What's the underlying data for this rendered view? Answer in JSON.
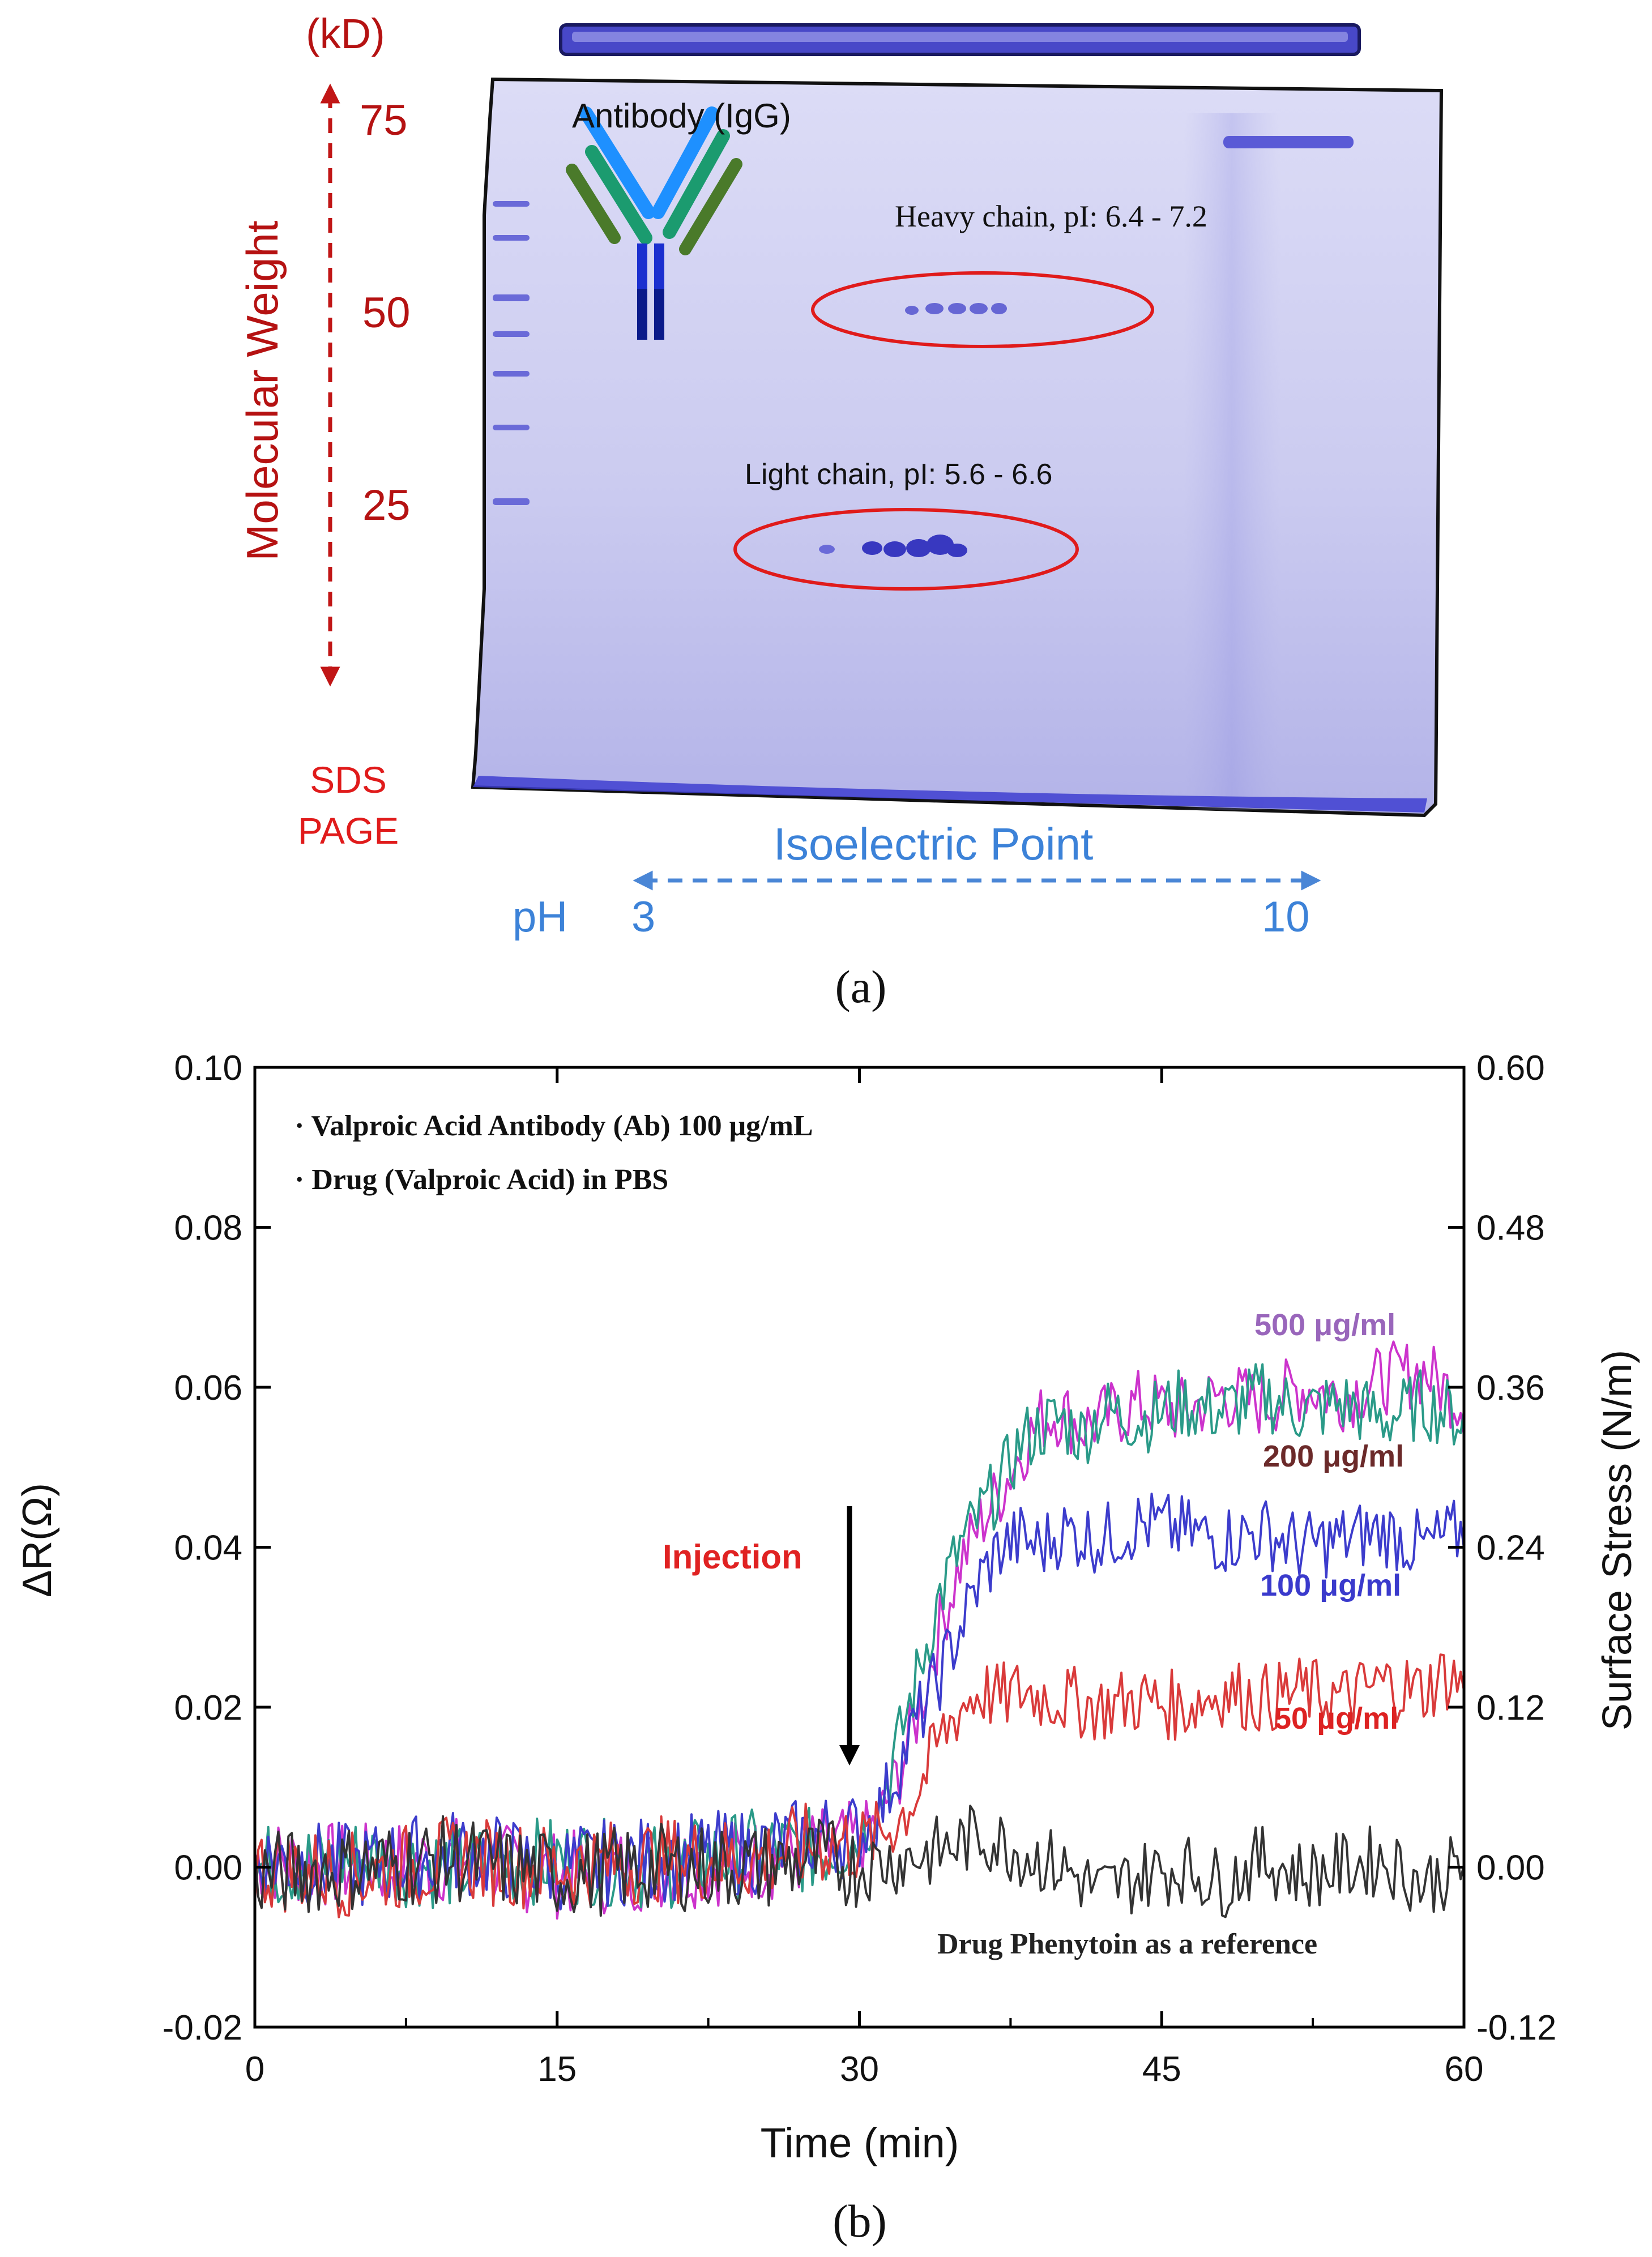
{
  "panel_a": {
    "kd_label": "(kD)",
    "mw_ticks": [
      "75",
      "50",
      "25"
    ],
    "mw_axis_label": "Molecular Weight",
    "sds_line1": "SDS",
    "sds_line2": "PAGE",
    "antibody_label": "Antibody (IgG)",
    "heavy_chain_label": "Heavy chain, pI: 6.4 - 7.2",
    "light_chain_label": "Light chain, pI:  5.6 - 6.6",
    "iep_label": "Isoelectric Point",
    "ph_label": "pH",
    "ph_min": "3",
    "ph_max": "10",
    "caption": "(a)"
  },
  "panel_b": {
    "caption": "(b)",
    "legend_line1": "· Valproic Acid Antibody (Ab) 100 μg/mL",
    "legend_line2": "· Drug (Valproic Acid) in PBS",
    "injection_label": "Injection",
    "reference_label": "Drug Phenytoin as a reference"
  },
  "chart_data": {
    "type": "line",
    "title": "",
    "xlabel": "Time (min)",
    "ylabel": "ΔR(Ω)",
    "ylabel_right": "Surface Stress (N/m)",
    "xlim": [
      0,
      60
    ],
    "ylim": [
      -0.02,
      0.1
    ],
    "ylim_right": [
      -0.12,
      0.6
    ],
    "x_ticks": [
      "0",
      "15",
      "30",
      "45",
      "60"
    ],
    "y_ticks": [
      "-0.02",
      "0.00",
      "0.02",
      "0.04",
      "0.06",
      "0.08",
      "0.10"
    ],
    "y_right_ticks": [
      "-0.12",
      "0.00",
      "0.12",
      "0.24",
      "0.36",
      "0.48",
      "0.60"
    ],
    "injection_time": 30,
    "series": [
      {
        "name": "500 μg/ml",
        "color": "#cc33cc",
        "label_color": "#9966bb",
        "x": [
          0,
          5,
          10,
          15,
          20,
          25,
          28,
          30,
          31,
          32,
          33,
          34,
          35,
          36,
          37,
          38,
          39,
          40,
          41,
          42,
          44,
          46,
          48,
          50,
          52,
          54,
          56,
          58,
          59,
          60
        ],
        "y": [
          0.001,
          0.0,
          0.001,
          -0.001,
          0.0,
          0.001,
          0.002,
          0.003,
          0.006,
          0.012,
          0.02,
          0.03,
          0.038,
          0.043,
          0.047,
          0.052,
          0.056,
          0.057,
          0.055,
          0.056,
          0.058,
          0.057,
          0.059,
          0.058,
          0.06,
          0.059,
          0.061,
          0.062,
          0.06,
          0.058
        ]
      },
      {
        "name": "200 μg/ml",
        "color": "#2a9a88",
        "label_color": "#6b2a2a",
        "x": [
          0,
          5,
          10,
          15,
          20,
          25,
          28,
          30,
          31,
          32,
          33,
          34,
          35,
          36,
          37,
          38,
          39,
          40,
          41,
          42,
          44,
          46,
          48,
          50,
          52,
          54,
          56,
          58,
          59,
          60
        ],
        "y": [
          0.0,
          0.001,
          0.0,
          0.001,
          0.0,
          0.002,
          0.002,
          0.004,
          0.008,
          0.016,
          0.025,
          0.034,
          0.04,
          0.044,
          0.048,
          0.053,
          0.055,
          0.056,
          0.054,
          0.057,
          0.056,
          0.058,
          0.057,
          0.059,
          0.057,
          0.058,
          0.056,
          0.058,
          0.057,
          0.056
        ]
      },
      {
        "name": "100 μg/ml",
        "color": "#3c3ccc",
        "label_color": "#3a3acc",
        "x": [
          0,
          5,
          10,
          15,
          20,
          25,
          28,
          30,
          31,
          32,
          33,
          34,
          35,
          36,
          37,
          38,
          39,
          40,
          42,
          44,
          46,
          48,
          50,
          52,
          54,
          56,
          58,
          59,
          60
        ],
        "y": [
          0.001,
          0.0,
          0.002,
          0.0,
          0.001,
          0.002,
          0.004,
          0.004,
          0.007,
          0.013,
          0.019,
          0.024,
          0.03,
          0.036,
          0.04,
          0.041,
          0.04,
          0.042,
          0.041,
          0.043,
          0.042,
          0.041,
          0.042,
          0.04,
          0.041,
          0.042,
          0.04,
          0.041,
          0.042
        ]
      },
      {
        "name": "50 μg/ml",
        "color": "#d93a3a",
        "label_color": "#dd2222",
        "x": [
          0,
          5,
          10,
          15,
          20,
          25,
          28,
          30,
          31,
          32,
          33,
          34,
          35,
          36,
          37,
          38,
          40,
          42,
          44,
          46,
          48,
          50,
          52,
          54,
          56,
          58,
          59,
          60
        ],
        "y": [
          0.0,
          -0.001,
          0.001,
          0.0,
          0.001,
          0.001,
          0.003,
          0.003,
          0.004,
          0.006,
          0.01,
          0.016,
          0.02,
          0.022,
          0.021,
          0.022,
          0.021,
          0.02,
          0.021,
          0.02,
          0.022,
          0.021,
          0.022,
          0.021,
          0.023,
          0.022,
          0.024,
          0.023
        ]
      },
      {
        "name": "Drug Phenytoin as a reference",
        "color": "#333333",
        "label_color": "#222222",
        "x": [
          0,
          5,
          10,
          15,
          20,
          25,
          28,
          30,
          32,
          34,
          36,
          38,
          40,
          42,
          44,
          46,
          48,
          50,
          52,
          54,
          56,
          58,
          60
        ],
        "y": [
          -0.001,
          0.0,
          0.001,
          -0.001,
          0.0,
          0.0,
          0.001,
          0.0,
          0.001,
          0.002,
          0.004,
          0.002,
          0.0,
          -0.003,
          -0.001,
          0.0,
          -0.002,
          0.001,
          -0.001,
          0.0,
          0.001,
          -0.002,
          0.0
        ]
      }
    ]
  }
}
